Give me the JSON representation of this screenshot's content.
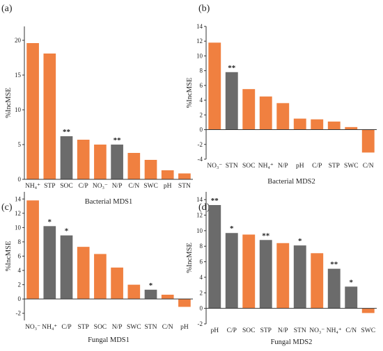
{
  "colors": {
    "highlight": "#6b6b6b",
    "default": "#f08040",
    "axis": "#333333"
  },
  "chart_data": [
    {
      "type": "bar",
      "panel_label": "(a)",
      "xlabel": "Bacterial MDS1",
      "ylabel": "%IncMSE",
      "ylim": [
        0,
        22
      ],
      "yticks": [
        0,
        5,
        10,
        15,
        20
      ],
      "categories": [
        "NH₄⁺",
        "STP",
        "SOC",
        "C/P",
        "NO₃⁻",
        "N/P",
        "C/N",
        "SWC",
        "pH",
        "STN"
      ],
      "values": [
        19.6,
        18.1,
        6.2,
        5.7,
        5.0,
        5.0,
        3.8,
        2.8,
        1.3,
        0.85
      ],
      "highlight": [
        false,
        false,
        true,
        false,
        false,
        true,
        false,
        false,
        false,
        false
      ],
      "significance": [
        "",
        "",
        "**",
        "",
        "",
        "**",
        "",
        "",
        "",
        ""
      ]
    },
    {
      "type": "bar",
      "panel_label": "(b)",
      "xlabel": "Bacterial MDS2",
      "ylabel": "%IncMSE",
      "ylim": [
        -4,
        14
      ],
      "yticks": [
        -4,
        -2,
        0,
        2,
        4,
        6,
        8,
        10,
        12,
        14
      ],
      "categories": [
        "NO₃⁻",
        "STN",
        "SOC",
        "NH₄⁺",
        "N/P",
        "pH",
        "C/P",
        "STP",
        "SWC",
        "C/N"
      ],
      "values": [
        11.8,
        7.8,
        5.5,
        4.5,
        3.6,
        1.5,
        1.4,
        1.1,
        0.35,
        -3.1
      ],
      "highlight": [
        false,
        true,
        false,
        false,
        false,
        false,
        false,
        false,
        false,
        false
      ],
      "significance": [
        "",
        "**",
        "",
        "",
        "",
        "",
        "",
        "",
        "",
        ""
      ]
    },
    {
      "type": "bar",
      "panel_label": "(c)",
      "xlabel": "Fungal MDS1",
      "ylabel": "%IncMSE",
      "ylim": [
        -3,
        15
      ],
      "yticks": [
        -2,
        0,
        2,
        4,
        6,
        8,
        10,
        12,
        14
      ],
      "categories": [
        "NO₃⁻",
        "NH₄⁺",
        "C/P",
        "STP",
        "SOC",
        "N/P",
        "SWC",
        "STN",
        "C/N",
        "pH"
      ],
      "values": [
        13.8,
        10.2,
        8.9,
        7.3,
        6.3,
        4.4,
        2.0,
        1.3,
        0.6,
        -1.1
      ],
      "highlight": [
        false,
        true,
        true,
        false,
        false,
        false,
        false,
        true,
        false,
        false
      ],
      "significance": [
        "",
        "*",
        "*",
        "",
        "",
        "",
        "",
        "*",
        "",
        ""
      ]
    },
    {
      "type": "bar",
      "panel_label": "(d)",
      "xlabel": "Fungal MDS2",
      "ylabel": "%IncMSE",
      "ylim": [
        -2,
        15
      ],
      "yticks": [
        -2,
        0,
        2,
        4,
        6,
        8,
        10,
        12,
        14
      ],
      "categories": [
        "pH",
        "C/P",
        "SOC",
        "STP",
        "N/P",
        "STN",
        "NO₃⁻",
        "NH₄⁺",
        "C/N",
        "SWC"
      ],
      "values": [
        13.3,
        9.7,
        9.5,
        8.8,
        8.4,
        8.1,
        7.1,
        5.1,
        2.8,
        -0.6
      ],
      "highlight": [
        true,
        true,
        false,
        true,
        false,
        true,
        false,
        true,
        true,
        false
      ],
      "significance": [
        "**",
        "*",
        "",
        "**",
        "",
        "*",
        "",
        "**",
        "*",
        ""
      ]
    }
  ]
}
